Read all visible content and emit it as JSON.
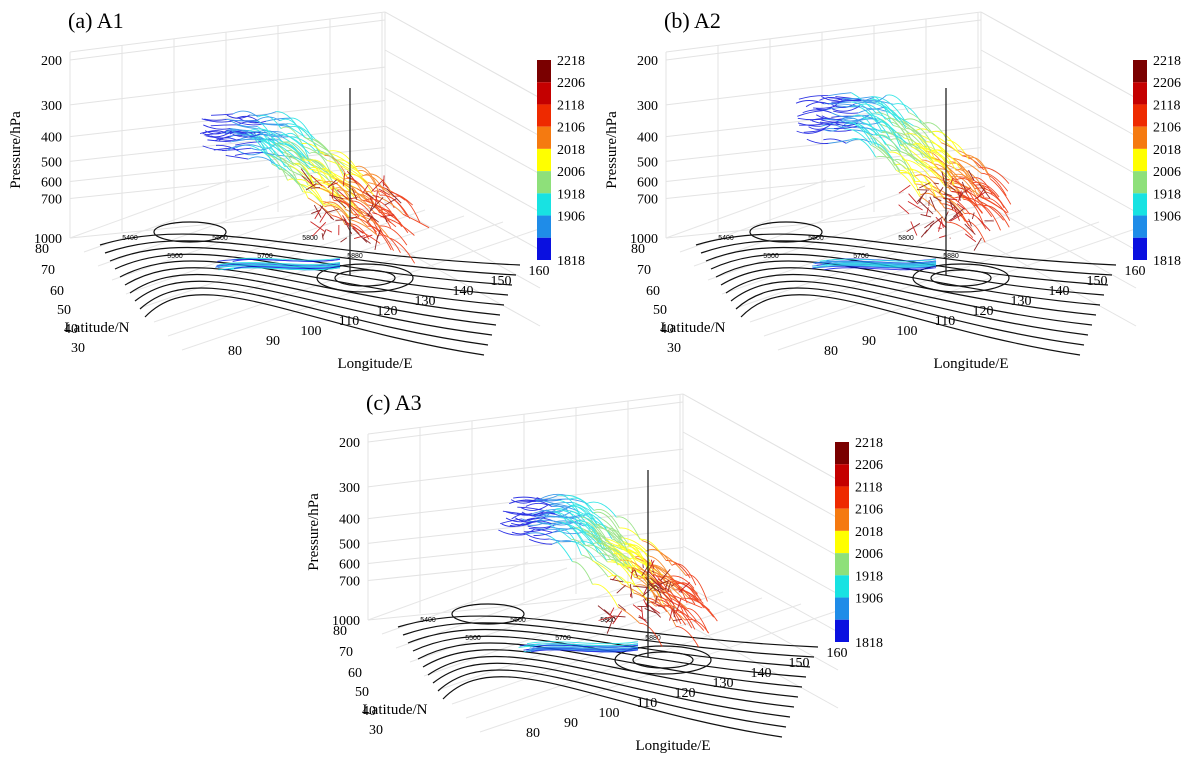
{
  "figure": {
    "colorbar": {
      "labels": [
        "2218",
        "2206",
        "2118",
        "2106",
        "2018",
        "2006",
        "1918",
        "1906",
        "1818"
      ],
      "colors": [
        "#7a0000",
        "#c40000",
        "#ee2a00",
        "#f57a10",
        "#ffff00",
        "#8ee07a",
        "#18e2e2",
        "#1f8ce8",
        "#0a10e0"
      ]
    },
    "axes": {
      "pressure_label": "Pressure/hPa",
      "pressure_ticks": [
        "200",
        "300",
        "400",
        "500",
        "600",
        "700",
        "1000"
      ],
      "latitude_label": "Latitude/N",
      "latitude_ticks": [
        "80",
        "70",
        "60",
        "50",
        "40",
        "30"
      ],
      "longitude_label": "Longitude/E",
      "longitude_ticks": [
        "80",
        "90",
        "100",
        "110",
        "120",
        "130",
        "140",
        "150",
        "160"
      ]
    },
    "contour_labels": [
      "5400",
      "5500",
      "5600",
      "5700",
      "5800",
      "5880"
    ]
  },
  "chart_data": [
    {
      "type": "line",
      "title": "(a)  A1",
      "description_of_series": "backward trajectories colored by time",
      "x_axis": {
        "label": "Longitude/E",
        "range": [
          80,
          160
        ]
      },
      "y_axis": {
        "label": "Latitude/N",
        "range": [
          30,
          80
        ]
      },
      "z_axis": {
        "label": "Pressure/hPa",
        "range": [
          1000,
          200
        ],
        "scale": "log"
      },
      "colorbar_range": [
        "1818",
        "2218"
      ],
      "source_point": {
        "longitude": 113,
        "latitude": 35,
        "pressure_top": 250,
        "pressure_bottom": 1000
      }
    },
    {
      "type": "line",
      "title": "(b)  A2",
      "x_axis": {
        "label": "Longitude/E",
        "range": [
          80,
          160
        ]
      },
      "y_axis": {
        "label": "Latitude/N",
        "range": [
          30,
          80
        ]
      },
      "z_axis": {
        "label": "Pressure/hPa",
        "range": [
          1000,
          200
        ],
        "scale": "log"
      },
      "colorbar_range": [
        "1818",
        "2218"
      ],
      "source_point": {
        "longitude": 113,
        "latitude": 35,
        "pressure_top": 250,
        "pressure_bottom": 1000
      }
    },
    {
      "type": "line",
      "title": "(c)  A3",
      "x_axis": {
        "label": "Longitude/E",
        "range": [
          80,
          160
        ]
      },
      "y_axis": {
        "label": "Latitude/N",
        "range": [
          30,
          80
        ]
      },
      "z_axis": {
        "label": "Pressure/hPa",
        "range": [
          1000,
          200
        ],
        "scale": "log"
      },
      "colorbar_range": [
        "1818",
        "2218"
      ],
      "source_point": {
        "longitude": 113,
        "latitude": 35,
        "pressure_top": 250,
        "pressure_bottom": 1000
      }
    }
  ]
}
